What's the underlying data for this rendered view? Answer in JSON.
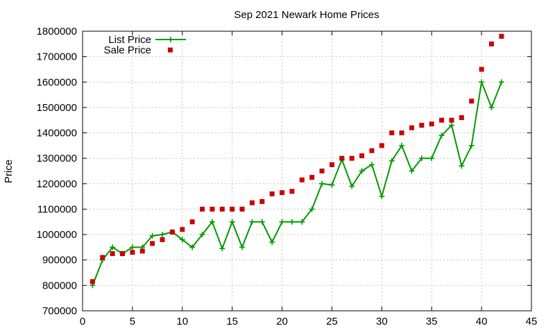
{
  "chart_data": {
    "type": "line",
    "title": "Sep 2021 Newark Home Prices",
    "xlabel": "",
    "ylabel": "Price",
    "xlim": [
      0,
      45
    ],
    "ylim": [
      700000,
      1800000
    ],
    "xticks": [
      0,
      5,
      10,
      15,
      20,
      25,
      30,
      35,
      40,
      45
    ],
    "yticks": [
      700000,
      800000,
      900000,
      1000000,
      1100000,
      1200000,
      1300000,
      1400000,
      1500000,
      1600000,
      1700000,
      1800000
    ],
    "grid": true,
    "legend_position": "top-left",
    "series": [
      {
        "name": "List Price",
        "style": "linespoints",
        "color": "#009900",
        "marker": "plus",
        "x": [
          1,
          2,
          3,
          4,
          5,
          6,
          7,
          8,
          9,
          10,
          11,
          12,
          13,
          14,
          15,
          16,
          17,
          18,
          19,
          20,
          21,
          22,
          23,
          24,
          25,
          26,
          27,
          28,
          29,
          30,
          31,
          32,
          33,
          34,
          35,
          36,
          37,
          38,
          39,
          40,
          41,
          42
        ],
        "values": [
          800000,
          900000,
          950000,
          925000,
          950000,
          950000,
          995000,
          1000000,
          1010000,
          980000,
          950000,
          1000000,
          1050000,
          945000,
          1050000,
          950000,
          1050000,
          1050000,
          970000,
          1050000,
          1050000,
          1050000,
          1100000,
          1200000,
          1195000,
          1295000,
          1190000,
          1250000,
          1275000,
          1150000,
          1290000,
          1350000,
          1250000,
          1300000,
          1300000,
          1390000,
          1430000,
          1270000,
          1350000,
          1600000,
          1500000,
          1600000
        ]
      },
      {
        "name": "Sale Price",
        "style": "points",
        "color": "#cc0000",
        "marker": "square",
        "x": [
          1,
          2,
          3,
          4,
          5,
          6,
          7,
          8,
          9,
          10,
          11,
          12,
          13,
          14,
          15,
          16,
          17,
          18,
          19,
          20,
          21,
          22,
          23,
          24,
          25,
          26,
          27,
          28,
          29,
          30,
          31,
          32,
          33,
          34,
          35,
          36,
          37,
          38,
          39,
          40,
          41,
          42
        ],
        "values": [
          815000,
          910000,
          925000,
          925000,
          930000,
          935000,
          965000,
          980000,
          1010000,
          1020000,
          1050000,
          1100000,
          1100000,
          1100000,
          1100000,
          1100000,
          1125000,
          1130000,
          1160000,
          1165000,
          1170000,
          1215000,
          1225000,
          1250000,
          1275000,
          1300000,
          1300000,
          1310000,
          1330000,
          1350000,
          1400000,
          1400000,
          1420000,
          1430000,
          1435000,
          1450000,
          1450000,
          1460000,
          1525000,
          1650000,
          1750000,
          1780000
        ]
      }
    ]
  }
}
